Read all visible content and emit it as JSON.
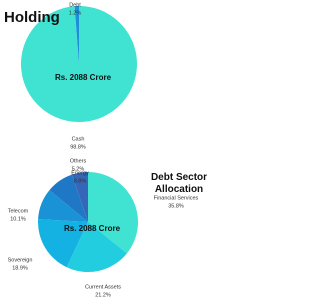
{
  "chart_data": [
    {
      "type": "pie",
      "title": "Holding",
      "center_label": "Rs. 2088 Crore",
      "categories": [
        "Cash",
        "Debt"
      ],
      "values": [
        98.8,
        1.2
      ],
      "value_labels": [
        "98.8%",
        "1.2%"
      ],
      "colors": [
        "#40e3d2",
        "#1c8fd8"
      ]
    },
    {
      "type": "pie",
      "title": "Debt Sector Allocation",
      "center_label": "Rs. 2088 Crore",
      "categories": [
        "Financial Services",
        "Current Assets",
        "Sovereign",
        "Telecom",
        "Energy",
        "Others"
      ],
      "values": [
        35.8,
        21.2,
        18.9,
        10.1,
        8.8,
        5.2
      ],
      "value_labels": [
        "35.8%",
        "21.2%",
        "18.9%",
        "10.1%",
        "8.8%",
        "5.2%"
      ],
      "colors": [
        "#40e3d2",
        "#22cde0",
        "#14b2e2",
        "#1a93d6",
        "#1f78c6",
        "#3566b8"
      ]
    }
  ]
}
